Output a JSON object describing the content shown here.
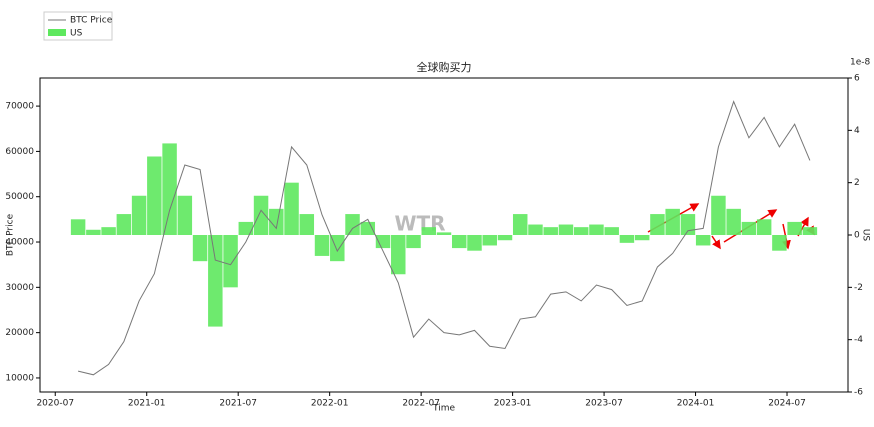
{
  "chart_data": {
    "type": "bar-line",
    "title": "全球购买力",
    "xlabel": "Time",
    "ylabel": "BTC Price",
    "y2label": "US",
    "y2_offset_label": "1e-8",
    "watermark": "WTR",
    "legend": "upper left",
    "x": [
      "2020-08",
      "2020-09",
      "2020-10",
      "2020-11",
      "2020-12",
      "2021-01",
      "2021-02",
      "2021-03",
      "2021-04",
      "2021-05",
      "2021-06",
      "2021-07",
      "2021-08",
      "2021-09",
      "2021-10",
      "2021-11",
      "2021-12",
      "2022-01",
      "2022-02",
      "2022-03",
      "2022-04",
      "2022-05",
      "2022-06",
      "2022-07",
      "2022-08",
      "2022-09",
      "2022-10",
      "2022-11",
      "2022-12",
      "2023-01",
      "2023-02",
      "2023-03",
      "2023-04",
      "2023-05",
      "2023-06",
      "2023-07",
      "2023-08",
      "2023-09",
      "2023-10",
      "2023-11",
      "2023-12",
      "2024-01",
      "2024-02",
      "2024-03",
      "2024-04",
      "2024-05",
      "2024-06",
      "2024-07",
      "2024-08"
    ],
    "xlim": [
      "2020-06",
      "2024-11"
    ],
    "xticks": [
      "2020-07",
      "2021-01",
      "2021-07",
      "2022-01",
      "2022-07",
      "2023-01",
      "2023-07",
      "2024-01",
      "2024-07"
    ],
    "series": [
      {
        "name": "BTC Price",
        "color": "#777777",
        "values": [
          11500,
          10700,
          13000,
          18000,
          27000,
          33000,
          47000,
          57000,
          56000,
          36000,
          35000,
          40000,
          47000,
          43000,
          61000,
          57000,
          46000,
          38000,
          43000,
          45000,
          38000,
          31000,
          19000,
          23000,
          20000,
          19500,
          20500,
          17000,
          16500,
          23000,
          23500,
          28500,
          29000,
          27000,
          30500,
          29500,
          26000,
          27000,
          34500,
          37500,
          42500,
          43000,
          61000,
          71000,
          63000,
          67500,
          61000,
          66000,
          58000
        ]
      },
      {
        "name": "US",
        "color": "#5ee85e",
        "axis": "y2",
        "values": [
          0.6,
          0.2,
          0.3,
          0.8,
          1.5,
          3.0,
          3.5,
          1.5,
          -1.0,
          -3.5,
          -2.0,
          0.5,
          1.5,
          1.0,
          2.0,
          0.8,
          -0.8,
          -1.0,
          0.8,
          0.5,
          -0.5,
          -1.5,
          -0.5,
          0.3,
          0.1,
          -0.5,
          -0.6,
          -0.4,
          -0.2,
          0.8,
          0.4,
          0.3,
          0.4,
          0.3,
          0.4,
          0.3,
          -0.3,
          -0.2,
          0.8,
          1.0,
          0.8,
          -0.4,
          1.5,
          1.0,
          0.5,
          0.6,
          -0.6,
          0.5,
          0.3
        ]
      }
    ],
    "ylim": [
      6900,
      76200
    ],
    "yticks": [
      10000,
      20000,
      30000,
      40000,
      50000,
      60000,
      70000
    ],
    "y2lim": [
      -6,
      6
    ],
    "y2ticks": [
      -6,
      -4,
      -2,
      0,
      2,
      4,
      6
    ]
  }
}
